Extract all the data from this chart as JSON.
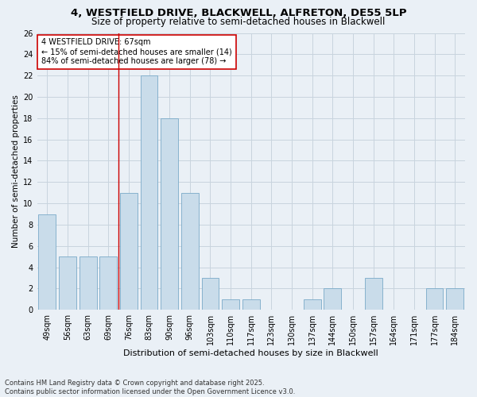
{
  "title1": "4, WESTFIELD DRIVE, BLACKWELL, ALFRETON, DE55 5LP",
  "title2": "Size of property relative to semi-detached houses in Blackwell",
  "xlabel": "Distribution of semi-detached houses by size in Blackwell",
  "ylabel": "Number of semi-detached properties",
  "categories": [
    "49sqm",
    "56sqm",
    "63sqm",
    "69sqm",
    "76sqm",
    "83sqm",
    "90sqm",
    "96sqm",
    "103sqm",
    "110sqm",
    "117sqm",
    "123sqm",
    "130sqm",
    "137sqm",
    "144sqm",
    "150sqm",
    "157sqm",
    "164sqm",
    "171sqm",
    "177sqm",
    "184sqm"
  ],
  "values": [
    9,
    5,
    5,
    5,
    11,
    22,
    18,
    11,
    3,
    1,
    1,
    0,
    0,
    1,
    2,
    0,
    3,
    0,
    0,
    2,
    2
  ],
  "bar_color": "#c9dcea",
  "bar_edge_color": "#7aaac8",
  "grid_color": "#c8d4de",
  "background_color": "#eaf0f6",
  "red_line_x": 3.5,
  "annotation_text": "4 WESTFIELD DRIVE: 67sqm\n← 15% of semi-detached houses are smaller (14)\n84% of semi-detached houses are larger (78) →",
  "annotation_box_color": "#ffffff",
  "annotation_box_edge": "#cc0000",
  "ylim": [
    0,
    26
  ],
  "yticks": [
    0,
    2,
    4,
    6,
    8,
    10,
    12,
    14,
    16,
    18,
    20,
    22,
    24,
    26
  ],
  "footer": "Contains HM Land Registry data © Crown copyright and database right 2025.\nContains public sector information licensed under the Open Government Licence v3.0.",
  "title1_fontsize": 9.5,
  "title2_fontsize": 8.5,
  "xlabel_fontsize": 8,
  "ylabel_fontsize": 7.5,
  "tick_fontsize": 7,
  "annotation_fontsize": 7,
  "footer_fontsize": 6
}
